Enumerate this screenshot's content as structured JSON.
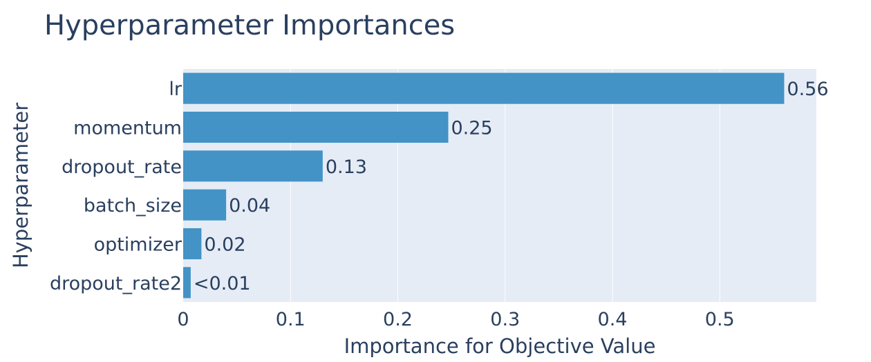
{
  "chart_data": {
    "type": "bar",
    "orientation": "horizontal",
    "title": "Hyperparameter Importances",
    "xlabel": "Importance for Objective Value",
    "ylabel": "Hyperparameter",
    "categories": [
      "lr",
      "momentum",
      "dropout_rate",
      "batch_size",
      "optimizer",
      "dropout_rate2"
    ],
    "values": [
      0.56,
      0.247,
      0.13,
      0.04,
      0.017,
      0.007
    ],
    "value_labels": [
      "0.56",
      "0.25",
      "0.13",
      "0.04",
      "0.02",
      "<0.01"
    ],
    "xlim": [
      0,
      0.59
    ],
    "xticks": [
      0,
      0.1,
      0.2,
      0.3,
      0.4,
      0.5
    ],
    "xtick_labels": [
      "0",
      "0.1",
      "0.2",
      "0.3",
      "0.4",
      "0.5"
    ],
    "grid": true,
    "colors": {
      "bar": "#4393c6",
      "plot_background": "#e5ecf6",
      "grid": "#ffffff",
      "text": "#2a3f5f"
    }
  }
}
